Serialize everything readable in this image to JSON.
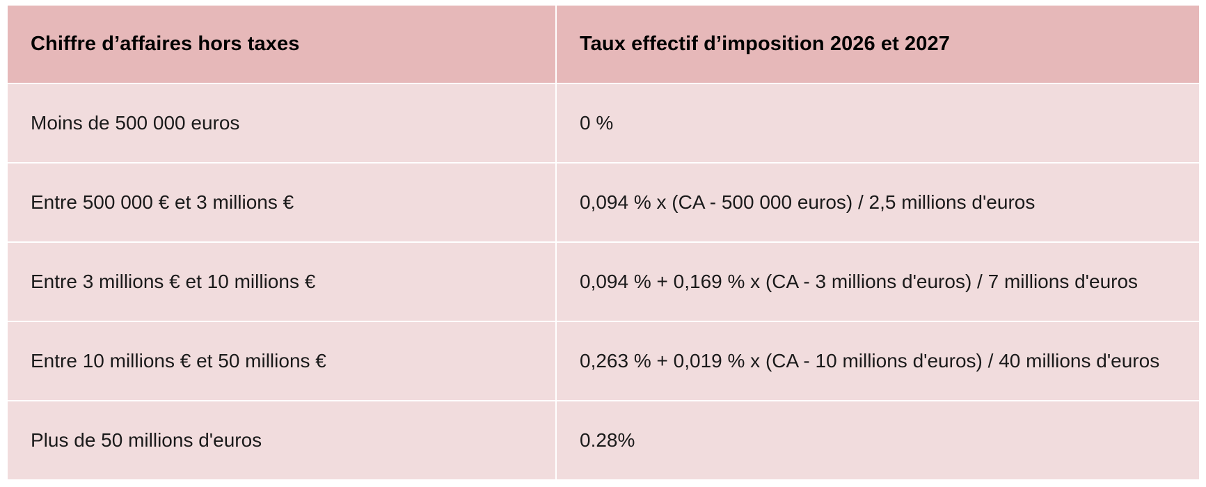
{
  "table": {
    "headers": [
      "Chiffre d’affaires hors taxes",
      "Taux effectif d’imposition 2026 et 2027"
    ],
    "rows": [
      [
        "Moins de 500 000 euros",
        "0 %"
      ],
      [
        "Entre 500 000 € et 3 millions €",
        "0,094 % x (CA - 500 000 euros) / 2,5 millions d'euros"
      ],
      [
        "Entre 3 millions € et 10 millions €",
        "0,094 % + 0,169 % x (CA - 3 millions d'euros) / 7 millions d'euros"
      ],
      [
        "Entre 10 millions € et 50 millions €",
        "0,263 % + 0,019 % x (CA - 10 millions d'euros) / 40 millions d'euros"
      ],
      [
        "Plus de 50 millions d'euros",
        "0.28%"
      ]
    ]
  },
  "colors": {
    "header_bg": "#e6b8b9",
    "row_bg": "#f1dcdd",
    "grid_line": "#ffffff"
  }
}
